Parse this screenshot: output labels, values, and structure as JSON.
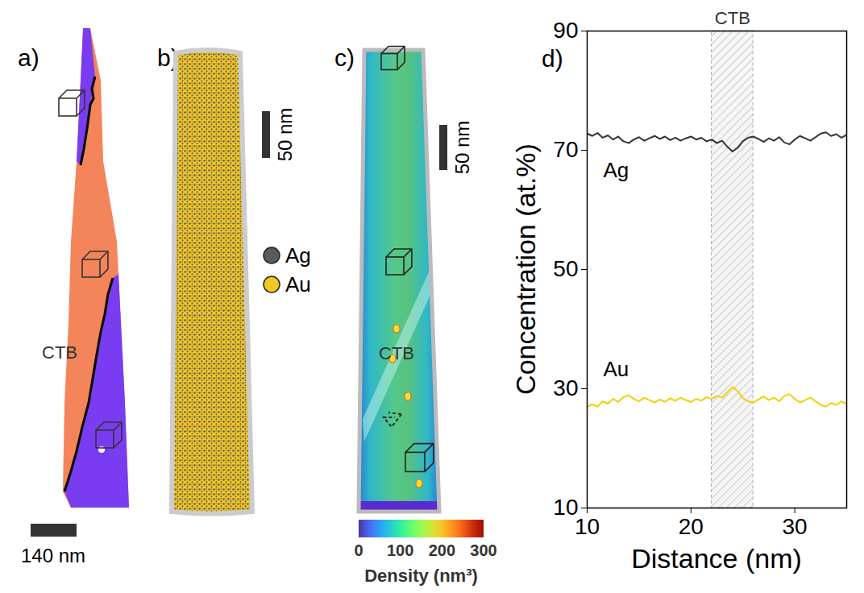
{
  "panels": {
    "a": {
      "label": "a)",
      "annotation": "CTB",
      "scale_bar": "140 nm"
    },
    "b": {
      "label": "b)",
      "scale_bar": "50 nm",
      "species": [
        {
          "name": "Ag",
          "color": "#5a5a5a"
        },
        {
          "name": "Au",
          "color": "#f2c623"
        }
      ]
    },
    "c": {
      "label": "c)",
      "annotation": "CTB",
      "scale_bar": "50 nm",
      "colorbar": {
        "label": "Density (nm³)",
        "range": [
          0,
          300
        ],
        "ticks": [
          0,
          100,
          200,
          300
        ]
      }
    }
  },
  "chart_data": {
    "type": "line",
    "panel_label": "d)",
    "xlabel": "Distance (nm)",
    "ylabel": "Concentration (at.%)",
    "annotation": {
      "text": "CTB",
      "x_range": [
        22,
        26
      ]
    },
    "x": [
      10,
      10.5,
      11,
      11.5,
      12,
      12.5,
      13,
      13.5,
      14,
      14.5,
      15,
      15.5,
      16,
      16.5,
      17,
      17.5,
      18,
      18.5,
      19,
      19.5,
      20,
      20.5,
      21,
      21.5,
      22,
      22.5,
      23,
      23.5,
      24,
      24.5,
      25,
      25.5,
      26,
      26.5,
      27,
      27.5,
      28,
      28.5,
      29,
      29.5,
      30,
      30.5,
      31,
      31.5,
      32,
      32.5,
      33,
      33.5,
      34,
      34.5,
      35
    ],
    "series": [
      {
        "name": "Ag",
        "color": "#333333",
        "values": [
          72.8,
          72.4,
          72.9,
          72.1,
          72.5,
          71.8,
          72.3,
          71.5,
          71.2,
          71.8,
          72.2,
          71.6,
          72.0,
          72.4,
          71.9,
          72.3,
          71.7,
          72.1,
          71.6,
          72.0,
          72.3,
          71.8,
          72.1,
          71.5,
          71.8,
          71.2,
          71.6,
          70.6,
          69.8,
          70.4,
          71.5,
          72.1,
          72.3,
          71.9,
          71.4,
          72.0,
          71.6,
          72.2,
          71.3,
          71.0,
          71.8,
          72.4,
          72.0,
          71.6,
          72.2,
          72.8,
          73.0,
          72.4,
          72.7,
          72.1,
          72.6
        ]
      },
      {
        "name": "Au",
        "color": "#f2d000",
        "values": [
          27.0,
          27.4,
          27.0,
          27.9,
          27.5,
          28.3,
          27.8,
          28.6,
          28.9,
          28.3,
          27.9,
          28.5,
          28.1,
          27.7,
          28.2,
          27.8,
          28.4,
          28.0,
          28.5,
          28.1,
          27.8,
          28.3,
          28.0,
          28.6,
          28.3,
          28.8,
          28.5,
          29.4,
          30.3,
          29.6,
          28.4,
          27.9,
          27.7,
          28.2,
          28.7,
          28.1,
          28.5,
          27.9,
          28.8,
          29.1,
          28.3,
          27.7,
          28.1,
          28.5,
          27.9,
          27.3,
          27.0,
          27.6,
          27.3,
          27.9,
          27.4
        ]
      }
    ],
    "xlim": [
      10,
      35
    ],
    "xticks": [
      10,
      20,
      30
    ],
    "ylim": [
      10,
      90
    ],
    "yticks": [
      10,
      30,
      50,
      70,
      90
    ]
  }
}
